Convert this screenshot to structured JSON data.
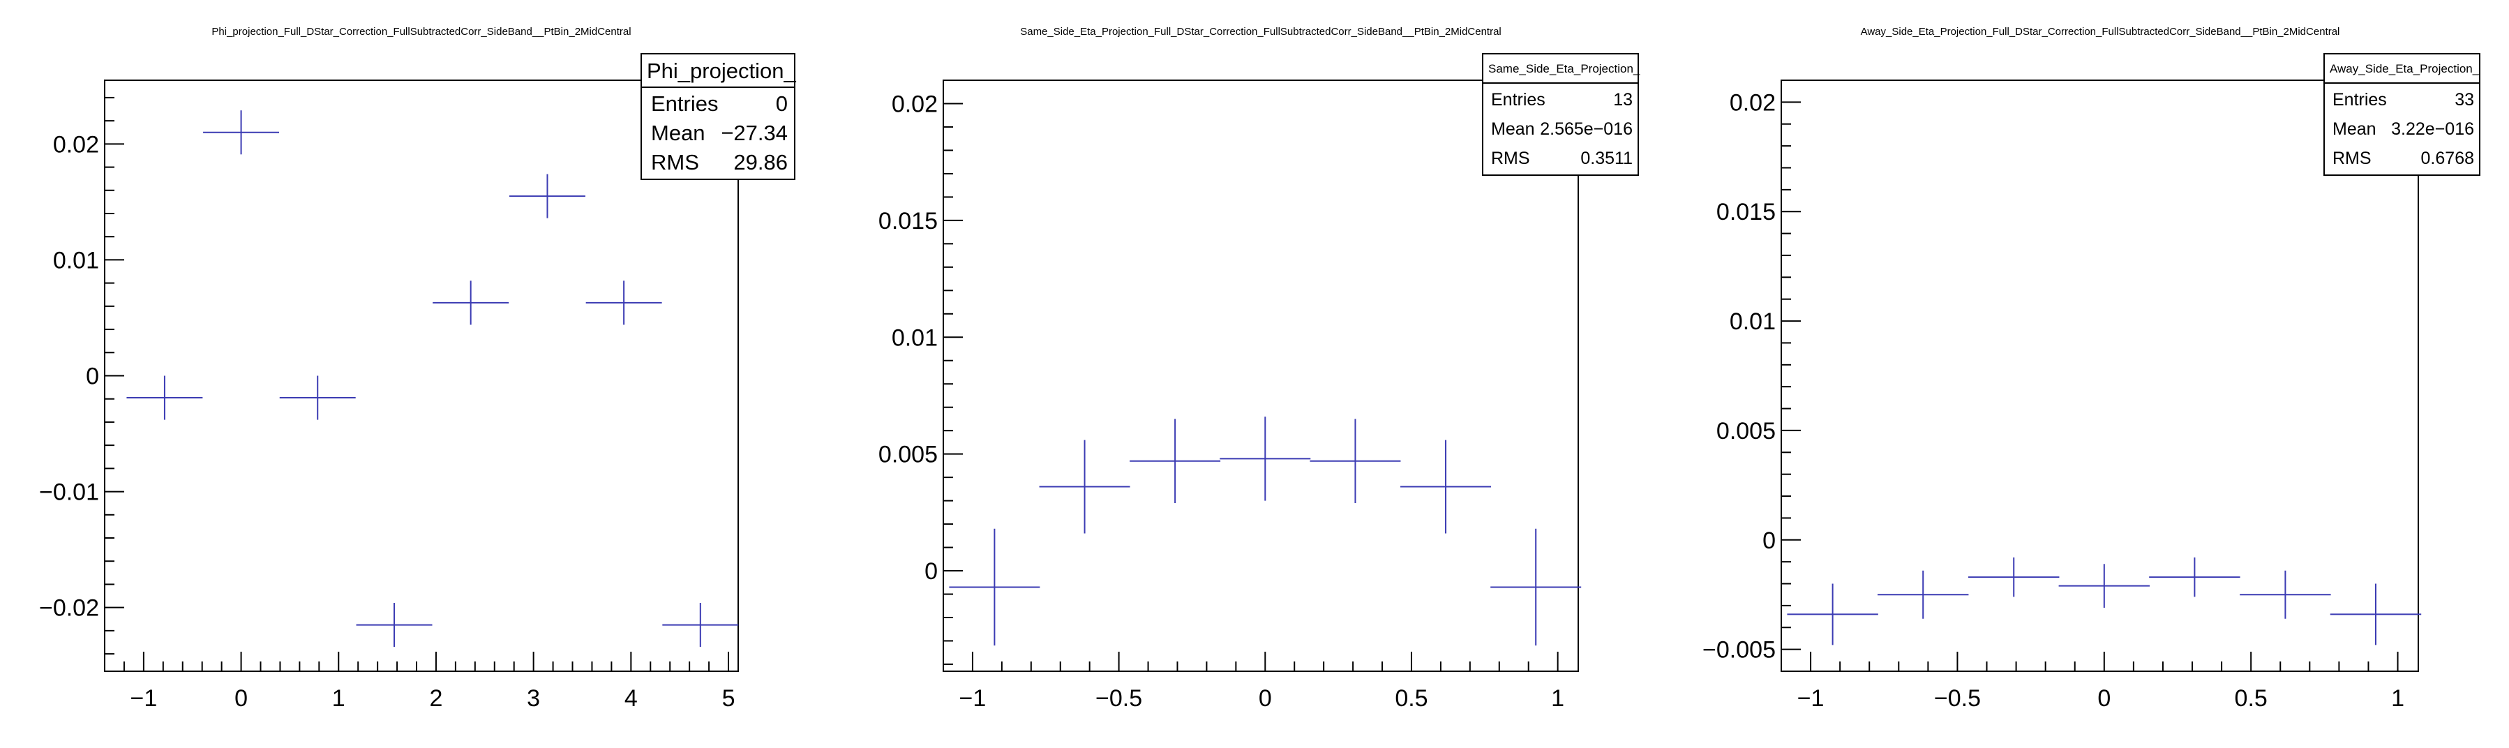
{
  "chart_data": [
    {
      "type": "scatter",
      "title": "Phi_projection_Full_DStar_Correction_FullSubtractedCorr_SideBand__PtBin_2MidCentral",
      "xlim": [
        -1.4,
        5.1
      ],
      "ylim": [
        -0.0255,
        0.0255
      ],
      "xticks": [
        "−1",
        "0",
        "1",
        "2",
        "3",
        "4",
        "5"
      ],
      "xtick_values": [
        -1,
        0,
        1,
        2,
        3,
        4,
        5
      ],
      "yticks": [
        "−0.02",
        "−0.01",
        "0",
        "0.01",
        "0.02"
      ],
      "ytick_values": [
        -0.02,
        -0.01,
        0,
        0.01,
        0.02
      ],
      "points": [
        {
          "x": -0.785,
          "y": -0.0019,
          "xerr": 0.39,
          "yerr": 0.0019
        },
        {
          "x": 0.0,
          "y": 0.021,
          "xerr": 0.39,
          "yerr": 0.0019
        },
        {
          "x": 0.785,
          "y": -0.0019,
          "xerr": 0.39,
          "yerr": 0.0019
        },
        {
          "x": 1.571,
          "y": -0.0215,
          "xerr": 0.39,
          "yerr": 0.0019
        },
        {
          "x": 2.356,
          "y": 0.0063,
          "xerr": 0.39,
          "yerr": 0.0019
        },
        {
          "x": 3.142,
          "y": 0.0155,
          "xerr": 0.39,
          "yerr": 0.0019
        },
        {
          "x": 3.927,
          "y": 0.0063,
          "xerr": 0.39,
          "yerr": 0.0019
        },
        {
          "x": 4.712,
          "y": -0.0215,
          "xerr": 0.39,
          "yerr": 0.0019
        }
      ],
      "stats": {
        "name": "Phi_projection_",
        "rows": [
          {
            "label": "Entries",
            "value": "0"
          },
          {
            "label": "Mean",
            "value": "−27.34"
          },
          {
            "label": "RMS",
            "value": "29.86"
          }
        ]
      }
    },
    {
      "type": "scatter",
      "title": "Same_Side_Eta_Projection_Full_DStar_Correction_FullSubtractedCorr_SideBand__PtBin_2MidCentral",
      "xlim": [
        -1.1,
        1.07
      ],
      "ylim": [
        -0.0043,
        0.021
      ],
      "xticks": [
        "−1",
        "−0.5",
        "0",
        "0.5",
        "1"
      ],
      "xtick_values": [
        -1,
        -0.5,
        0,
        0.5,
        1
      ],
      "yticks": [
        "0",
        "0.005",
        "0.01",
        "0.015",
        "0.02"
      ],
      "ytick_values": [
        0,
        0.005,
        0.01,
        0.015,
        0.02
      ],
      "points": [
        {
          "x": -0.925,
          "y": -0.0007,
          "xerr": 0.155,
          "yerr": 0.0025
        },
        {
          "x": -0.617,
          "y": 0.0036,
          "xerr": 0.155,
          "yerr": 0.002
        },
        {
          "x": -0.308,
          "y": 0.0047,
          "xerr": 0.155,
          "yerr": 0.0018
        },
        {
          "x": 0.0,
          "y": 0.0048,
          "xerr": 0.155,
          "yerr": 0.0018
        },
        {
          "x": 0.308,
          "y": 0.0047,
          "xerr": 0.155,
          "yerr": 0.0018
        },
        {
          "x": 0.617,
          "y": 0.0036,
          "xerr": 0.155,
          "yerr": 0.002
        },
        {
          "x": 0.925,
          "y": -0.0007,
          "xerr": 0.155,
          "yerr": 0.0025
        }
      ],
      "stats": {
        "name": "Same_Side_Eta_Projection_",
        "rows": [
          {
            "label": "Entries",
            "value": "13"
          },
          {
            "label": "Mean",
            "value": "2.565e−016"
          },
          {
            "label": "RMS",
            "value": "0.3511"
          }
        ]
      }
    },
    {
      "type": "scatter",
      "title": "Away_Side_Eta_Projection_Full_DStar_Correction_FullSubtractedCorr_SideBand__PtBin_2MidCentral",
      "xlim": [
        -1.1,
        1.07
      ],
      "ylim": [
        -0.006,
        0.021
      ],
      "xticks": [
        "−1",
        "−0.5",
        "0",
        "0.5",
        "1"
      ],
      "xtick_values": [
        -1,
        -0.5,
        0,
        0.5,
        1
      ],
      "yticks": [
        "−0.005",
        "0",
        "0.005",
        "0.01",
        "0.015",
        "0.02"
      ],
      "ytick_values": [
        -0.005,
        0,
        0.005,
        0.01,
        0.015,
        0.02
      ],
      "points": [
        {
          "x": -0.925,
          "y": -0.0034,
          "xerr": 0.155,
          "yerr": 0.0014
        },
        {
          "x": -0.617,
          "y": -0.0025,
          "xerr": 0.155,
          "yerr": 0.0011
        },
        {
          "x": -0.308,
          "y": -0.0017,
          "xerr": 0.155,
          "yerr": 0.0009
        },
        {
          "x": 0.0,
          "y": -0.0021,
          "xerr": 0.155,
          "yerr": 0.001
        },
        {
          "x": 0.308,
          "y": -0.0017,
          "xerr": 0.155,
          "yerr": 0.0009
        },
        {
          "x": 0.617,
          "y": -0.0025,
          "xerr": 0.155,
          "yerr": 0.0011
        },
        {
          "x": 0.925,
          "y": -0.0034,
          "xerr": 0.155,
          "yerr": 0.0014
        }
      ],
      "stats": {
        "name": "Away_Side_Eta_Projection_",
        "rows": [
          {
            "label": "Entries",
            "value": "33"
          },
          {
            "label": "Mean",
            "value": "3.22e−016"
          },
          {
            "label": "RMS",
            "value": "0.6768"
          }
        ]
      }
    }
  ],
  "colors": {
    "marker": "#3b3bb3",
    "axis": "#000000",
    "background": "#ffffff"
  }
}
